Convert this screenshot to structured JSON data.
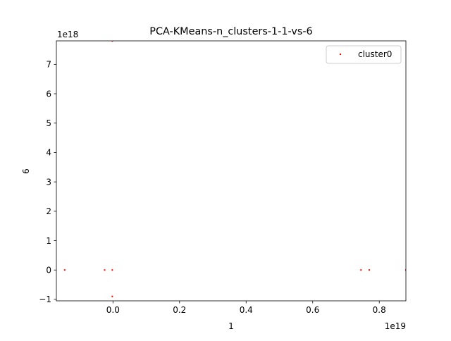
{
  "chart_data": {
    "type": "scatter",
    "title": "PCA-KMeans-n_clusters-1-1-vs-6",
    "xlabel": "1",
    "ylabel": "6",
    "x_offset_text": "1e19",
    "y_offset_text": "1e18",
    "xlim": [
      -0.17,
      0.88
    ],
    "ylim": [
      -1.05,
      7.8
    ],
    "x_ticks": [
      0.0,
      0.2,
      0.4,
      0.6,
      0.8
    ],
    "x_tick_labels": [
      "0.0",
      "0.2",
      "0.4",
      "0.6",
      "0.8"
    ],
    "y_ticks": [
      -1,
      0,
      1,
      2,
      3,
      4,
      5,
      6,
      7
    ],
    "y_tick_labels": [
      "−1",
      "0",
      "1",
      "2",
      "3",
      "4",
      "5",
      "6",
      "7"
    ],
    "grid": false,
    "legend_position": "top-right",
    "series": [
      {
        "name": "cluster0",
        "color": "#ff0000",
        "points": [
          [
            -0.145,
            0.0
          ],
          [
            -0.025,
            0.0
          ],
          [
            -0.002,
            0.0
          ],
          [
            -0.002,
            7.8
          ],
          [
            -0.002,
            -0.9
          ],
          [
            0.745,
            0.0
          ],
          [
            0.77,
            0.0
          ],
          [
            0.88,
            0.0
          ]
        ]
      }
    ]
  }
}
